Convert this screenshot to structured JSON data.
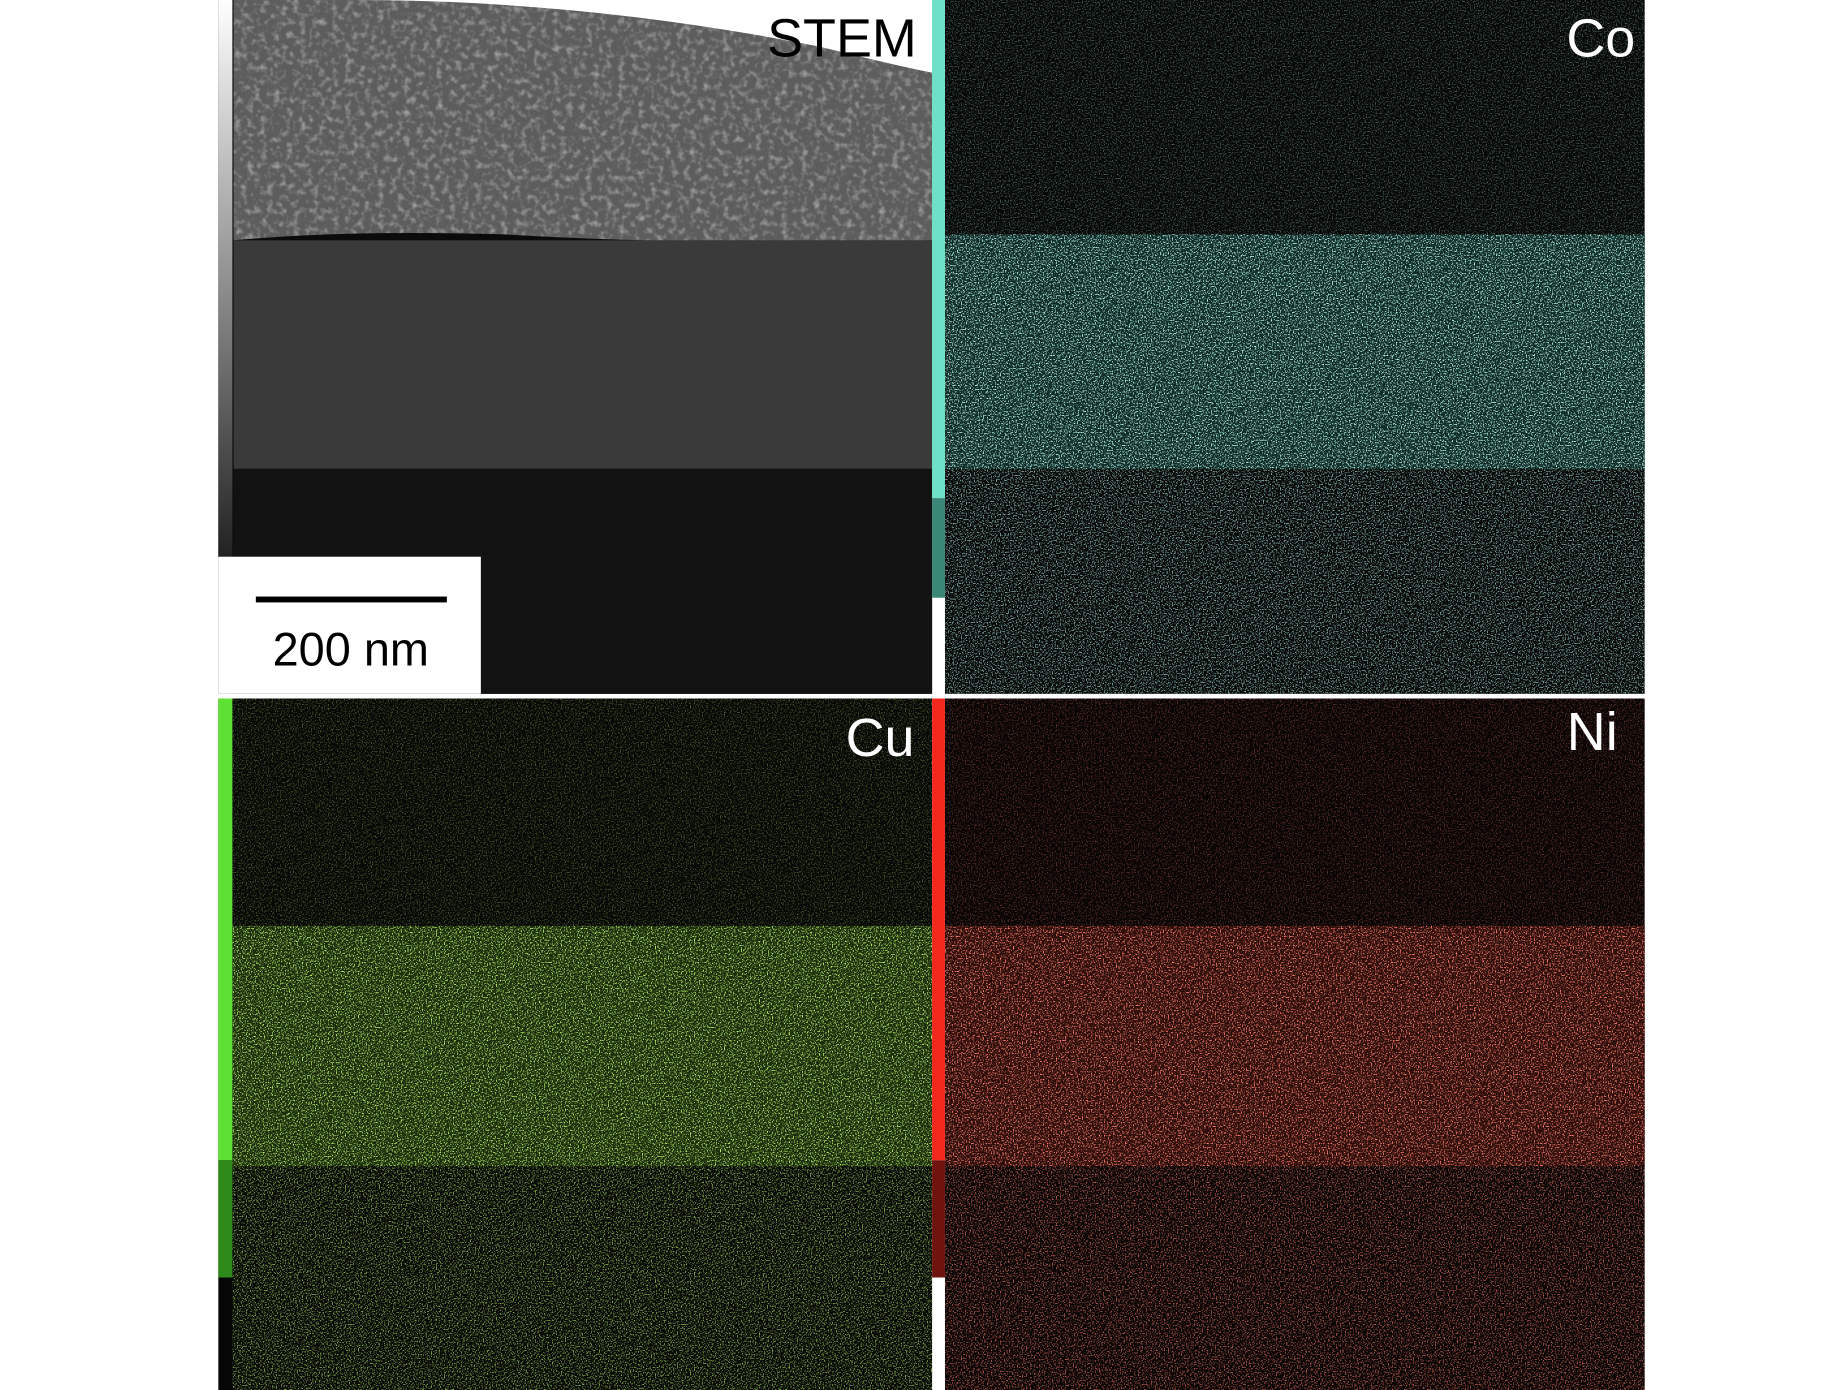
{
  "panels": [
    {
      "label": "STEM"
    },
    {
      "label": "Co"
    },
    {
      "label": "Cu"
    },
    {
      "label": "Ni"
    }
  ],
  "scale_bar": {
    "label": "200 nm"
  }
}
